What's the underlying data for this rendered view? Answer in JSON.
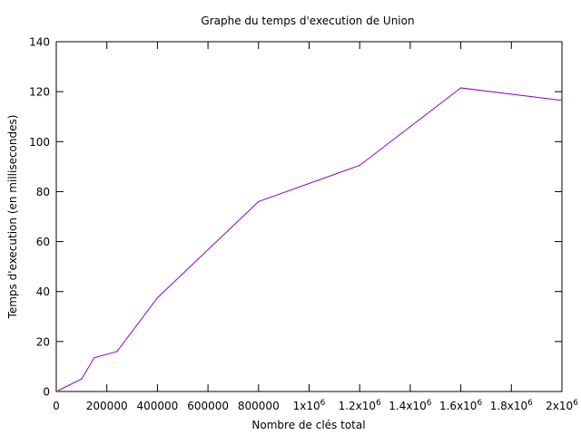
{
  "chart_data": {
    "type": "line",
    "title": "Graphe du temps d'execution de Union",
    "xlabel": "Nombre de clés total",
    "ylabel": "Temps d'execution (en millisecondes)",
    "xlim": [
      0,
      2000000
    ],
    "ylim": [
      0,
      140
    ],
    "x_ticks": [
      {
        "value": 0,
        "label": "0",
        "exp": ""
      },
      {
        "value": 200000,
        "label": "200000",
        "exp": ""
      },
      {
        "value": 400000,
        "label": "400000",
        "exp": ""
      },
      {
        "value": 600000,
        "label": "600000",
        "exp": ""
      },
      {
        "value": 800000,
        "label": "800000",
        "exp": ""
      },
      {
        "value": 1000000,
        "label": "1x10",
        "exp": "6"
      },
      {
        "value": 1200000,
        "label": "1.2x10",
        "exp": "6"
      },
      {
        "value": 1400000,
        "label": "1.4x10",
        "exp": "6"
      },
      {
        "value": 1600000,
        "label": "1.6x10",
        "exp": "6"
      },
      {
        "value": 1800000,
        "label": "1.8x10",
        "exp": "6"
      },
      {
        "value": 2000000,
        "label": "2x10",
        "exp": "6"
      }
    ],
    "y_ticks": [
      {
        "value": 0,
        "label": "0"
      },
      {
        "value": 20,
        "label": "20"
      },
      {
        "value": 40,
        "label": "40"
      },
      {
        "value": 60,
        "label": "60"
      },
      {
        "value": 80,
        "label": "80"
      },
      {
        "value": 100,
        "label": "100"
      },
      {
        "value": 120,
        "label": "120"
      },
      {
        "value": 140,
        "label": "140"
      }
    ],
    "grid": false,
    "series": [
      {
        "color": "#9400d3",
        "x": [
          10000,
          100000,
          150000,
          240000,
          400000,
          800000,
          1200000,
          1600000,
          2000000
        ],
        "y": [
          0.5,
          5,
          13.5,
          16,
          37.5,
          76,
          90.5,
          121.5,
          116.5
        ]
      }
    ]
  }
}
